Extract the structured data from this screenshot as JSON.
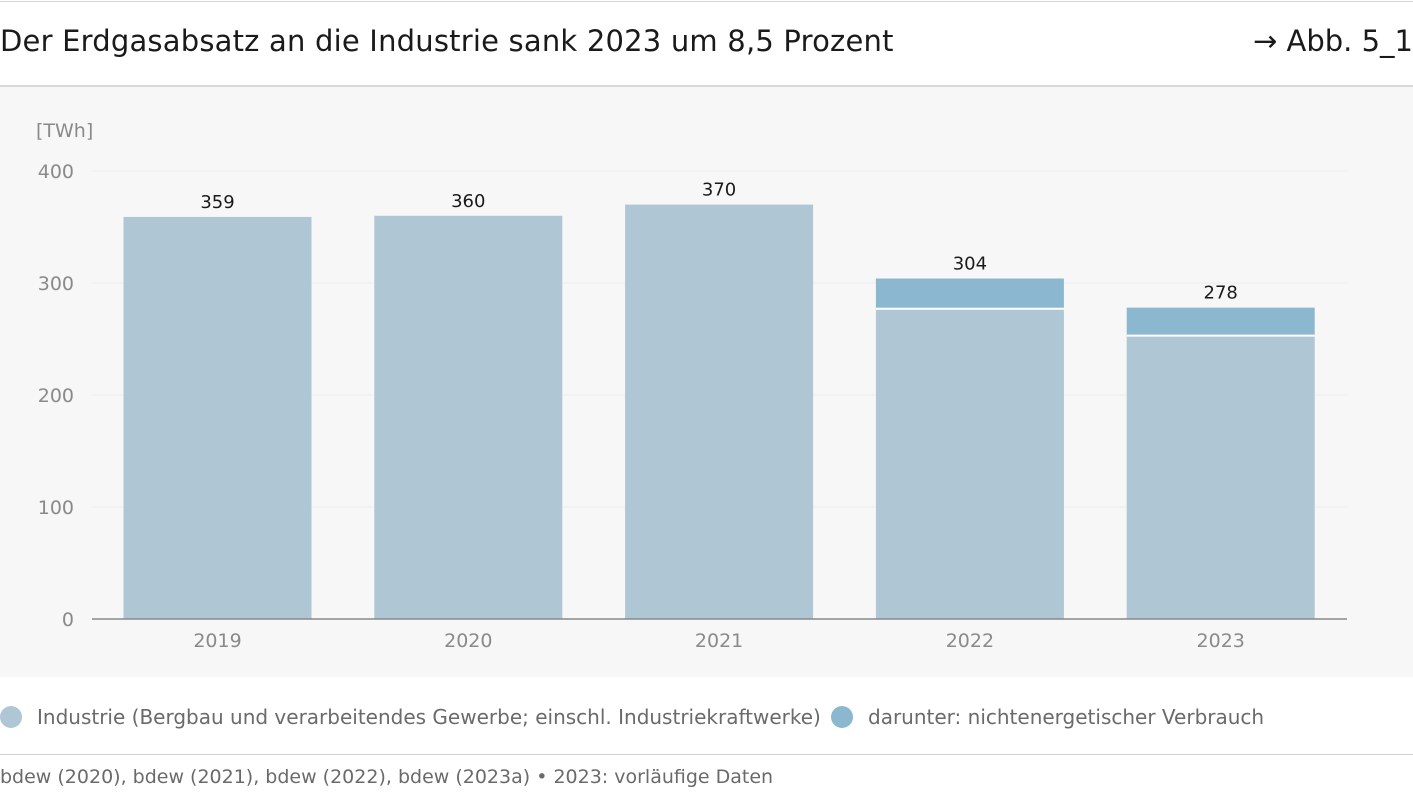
{
  "header": {
    "title": "Der Erdgasabsatz an die Industrie sank 2023 um 8,5 Prozent",
    "figure_ref": "→ Abb. 5_1"
  },
  "colors": {
    "industrie": "#afc6d4",
    "nichtenergetisch": "#8cb8cf",
    "axis_text": "#8a8a8a",
    "grid": "#ececec",
    "baseline": "#888888",
    "chart_bg": "#f7f7f7"
  },
  "chart_data": {
    "type": "bar",
    "unit_label": "[TWh]",
    "categories": [
      "2019",
      "2020",
      "2021",
      "2022",
      "2023"
    ],
    "series": [
      {
        "name": "Industrie (Bergbau und verarbeitendes Gewerbe; einschl. Industriekraftwerke)",
        "values": [
          359,
          360,
          370,
          304,
          278
        ]
      },
      {
        "name": "darunter: nichtenergetischer Verbrauch",
        "values": [
          null,
          null,
          null,
          27,
          25
        ]
      }
    ],
    "data_labels": [
      "359",
      "360",
      "370",
      "304",
      "278"
    ],
    "ylim": [
      0,
      400
    ],
    "yticks": [
      0,
      100,
      200,
      300,
      400
    ],
    "grid": true
  },
  "legend": {
    "items": [
      {
        "label": "Industrie (Bergbau und verarbeitendes Gewerbe; einschl. Industriekraftwerke)"
      },
      {
        "label": "darunter: nichtenergetischer Verbrauch"
      }
    ]
  },
  "footer": {
    "source": "bdew (2020), bdew (2021), bdew (2022), bdew (2023a) • 2023: vorläufige Daten"
  }
}
